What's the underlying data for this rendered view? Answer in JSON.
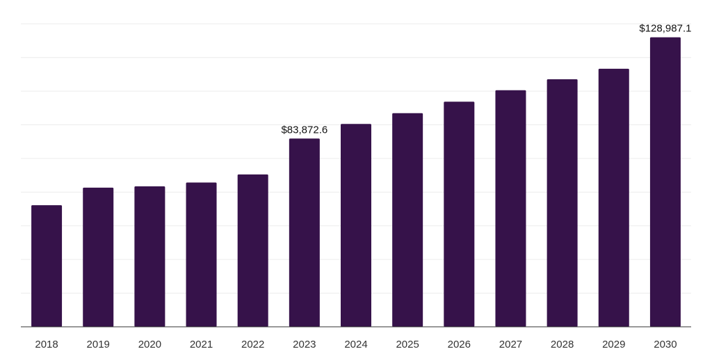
{
  "chart_data": {
    "type": "bar",
    "categories": [
      "2018",
      "2019",
      "2020",
      "2021",
      "2022",
      "2023",
      "2024",
      "2025",
      "2026",
      "2027",
      "2028",
      "2029",
      "2030"
    ],
    "values": [
      54200,
      62000,
      62600,
      64300,
      67900,
      83872.6,
      90400,
      95200,
      100300,
      105400,
      110300,
      115000,
      128987.1
    ],
    "ylim": [
      0,
      145000
    ],
    "grid_step": 15000,
    "grid": true,
    "value_labels": {
      "2023": "$83,872.6",
      "2030": "$128,987.1"
    },
    "bar_color": "#36124a"
  }
}
